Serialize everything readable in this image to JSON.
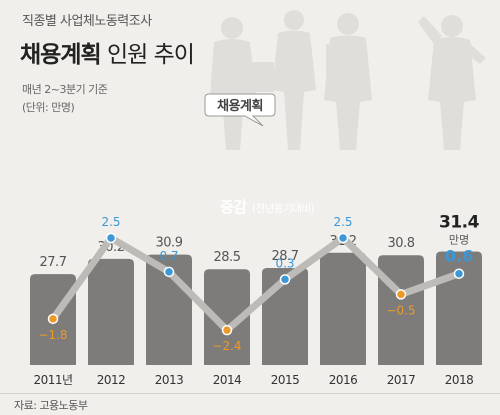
{
  "header": {
    "subtitle": "직종별 사업체노동력조사",
    "title_bold": "채용계획",
    "title_light": " 인원 추이",
    "note_period": "매년 2~3분기 기준",
    "note_unit": "(단위: 만명)"
  },
  "footer": {
    "source": "자료: 고용노동부"
  },
  "colors": {
    "background": "#f1efeb",
    "bar": "#7d7c7a",
    "line": "#bcbbb8",
    "point_positive": "#3b97d6",
    "point_negative": "#eb9a2a"
  },
  "chart_data": {
    "type": "bar",
    "title": "채용계획 인원 추이",
    "categories": [
      "2011년",
      "2012",
      "2013",
      "2014",
      "2015",
      "2016",
      "2017",
      "2018"
    ],
    "series": [
      {
        "name": "채용계획",
        "values": [
          27.7,
          30.2,
          30.9,
          28.5,
          28.7,
          31.2,
          30.8,
          31.4
        ],
        "value_labels": [
          "27.7",
          "30.2",
          "30.9",
          "28.5",
          "28.7",
          "31.2",
          "30.8",
          "31.4"
        ]
      },
      {
        "name": "증감",
        "name_note": "(전년동기대비)",
        "type": "line",
        "values": [
          -1.8,
          2.5,
          0.7,
          -2.4,
          0.3,
          2.5,
          -0.5,
          0.6
        ],
        "value_labels": [
          "−1.8",
          "2.5",
          "0.7",
          "−2.4",
          "0.3",
          "2.5",
          "−0.5",
          "0.6"
        ]
      }
    ],
    "last_value_unit": "만명",
    "ylabel": "",
    "grid": false,
    "legend": "inline labels"
  }
}
